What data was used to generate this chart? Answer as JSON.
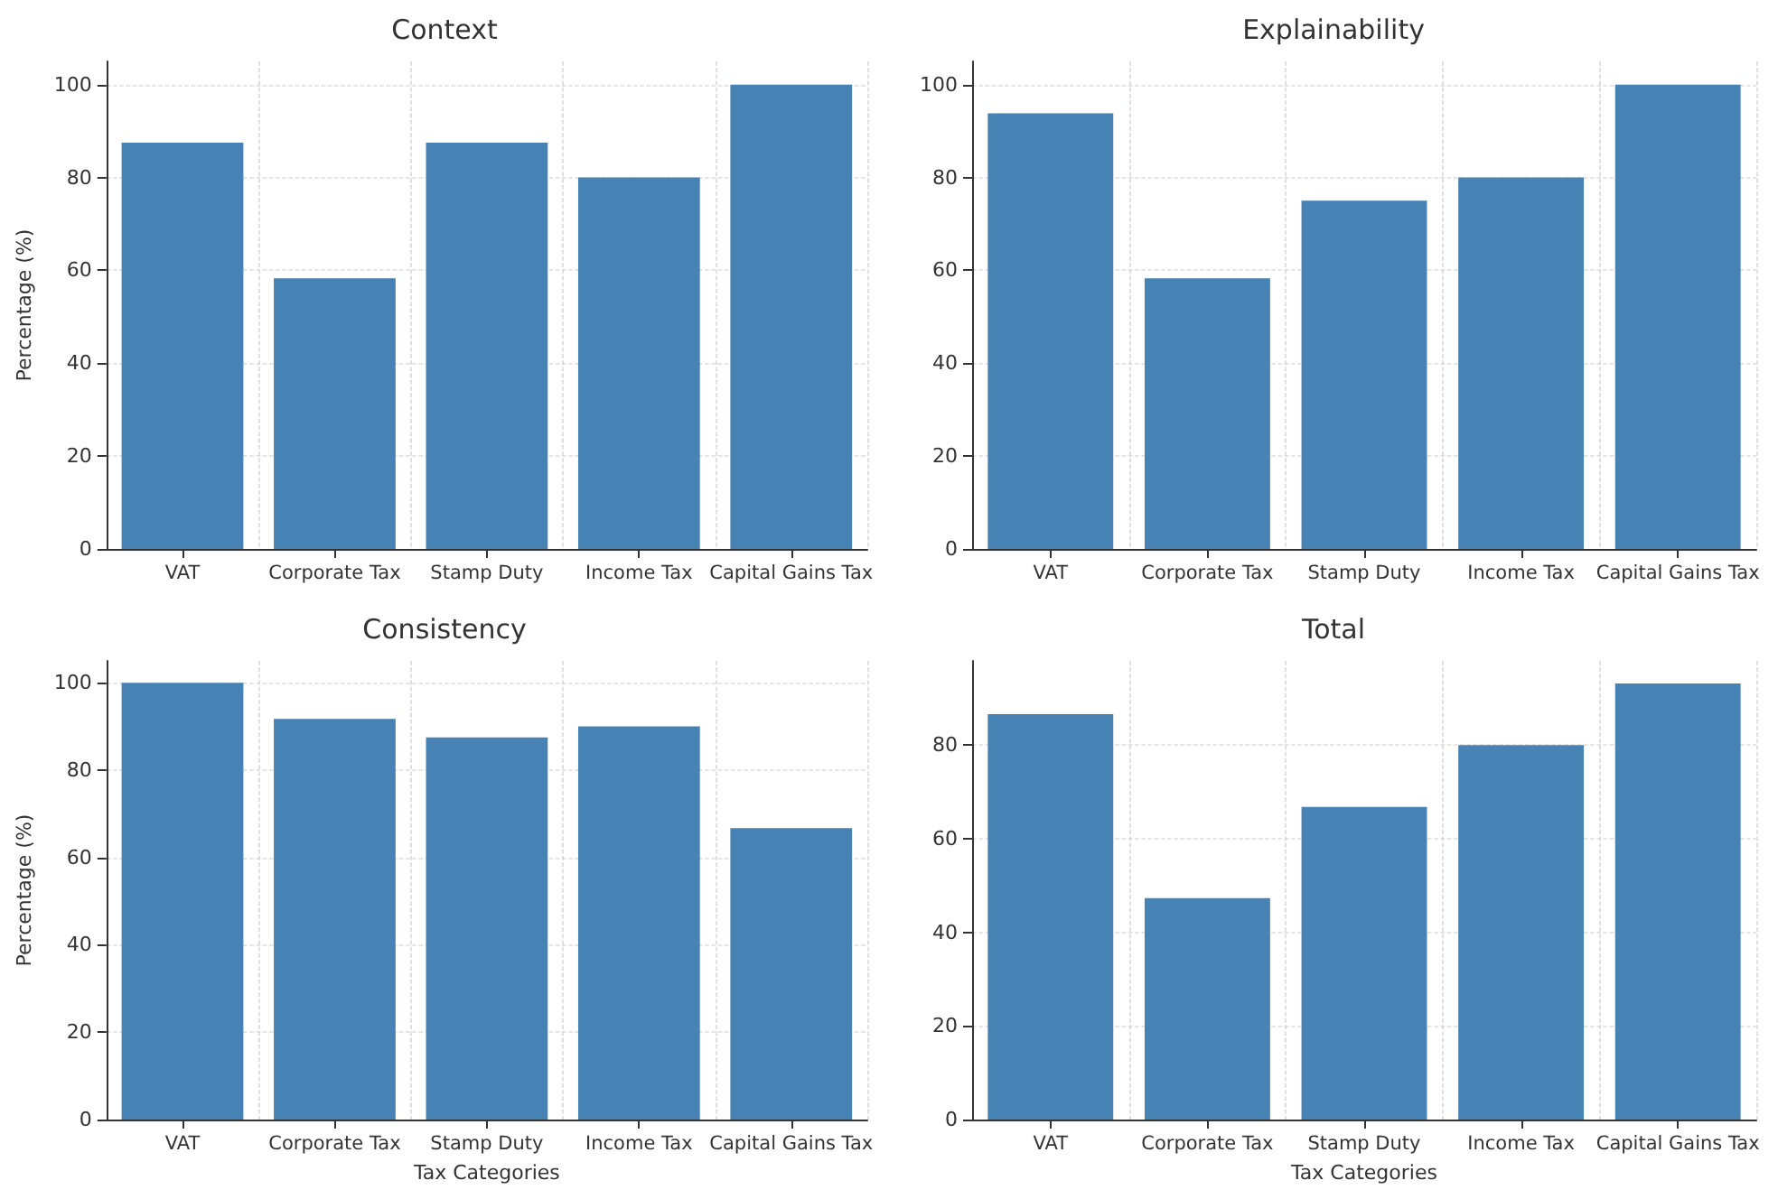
{
  "chart_data": [
    {
      "type": "bar",
      "title": "Context",
      "ylabel": "Percentage (%)",
      "categories": [
        "VAT",
        "Corporate Tax",
        "Stamp Duty",
        "Income Tax",
        "Capital Gains Tax"
      ],
      "values": [
        87.5,
        58.3,
        87.5,
        80,
        100
      ],
      "color": "#4682b4",
      "ylim": [
        0,
        105
      ],
      "yticks": [
        0,
        20,
        40,
        60,
        80,
        100
      ],
      "grid": true
    },
    {
      "type": "bar",
      "title": "Explainability",
      "categories": [
        "VAT",
        "Corporate Tax",
        "Stamp Duty",
        "Income Tax",
        "Capital Gains Tax"
      ],
      "values": [
        93.8,
        58.3,
        75,
        80,
        100
      ],
      "color": "#4682b4",
      "ylim": [
        0,
        105
      ],
      "yticks": [
        0,
        20,
        40,
        60,
        80,
        100
      ],
      "grid": true
    },
    {
      "type": "bar",
      "title": "Consistency",
      "ylabel": "Percentage (%)",
      "xlabel": "Tax Categories",
      "categories": [
        "VAT",
        "Corporate Tax",
        "Stamp Duty",
        "Income Tax",
        "Capital Gains Tax"
      ],
      "values": [
        100,
        91.7,
        87.5,
        90,
        66.7
      ],
      "color": "#4682b4",
      "ylim": [
        0,
        105
      ],
      "yticks": [
        0,
        20,
        40,
        60,
        80,
        100
      ],
      "grid": true
    },
    {
      "type": "bar",
      "title": "Total",
      "xlabel": "Tax Categories",
      "categories": [
        "VAT",
        "Corporate Tax",
        "Stamp Duty",
        "Income Tax",
        "Capital Gains Tax"
      ],
      "values": [
        86.6,
        47.3,
        66.8,
        80,
        93.2
      ],
      "color": "#4682b4",
      "ylim": [
        0,
        98
      ],
      "yticks": [
        0,
        20,
        40,
        60,
        80
      ],
      "grid": true
    }
  ]
}
